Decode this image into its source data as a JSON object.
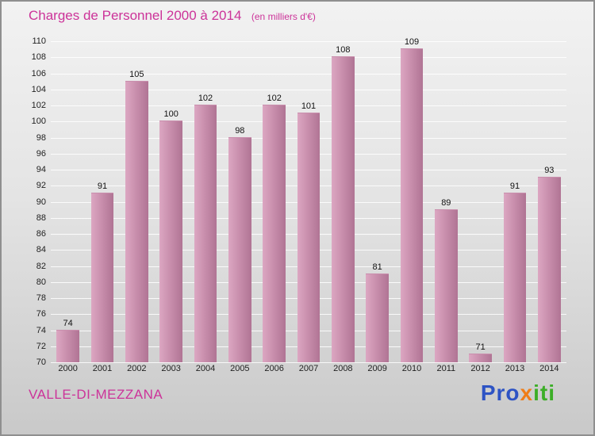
{
  "title": "Charges de Personnel 2000 à 2014",
  "subtitle": "(en milliers d'€)",
  "footer": {
    "location": "VALLE-DI-MEZZANA",
    "logo": {
      "pro": "Pro",
      "x": "x",
      "iti": "iti"
    }
  },
  "colors": {
    "accent": "#cc3399",
    "bar_light": "#dca7c2",
    "bar_dark": "#b07494",
    "logo_blue": "#2d53c4",
    "logo_orange": "#ef7d17",
    "logo_green": "#3cae27",
    "background_top": "#f2f2f2",
    "background_bottom": "#c9c9c9"
  },
  "chart_data": {
    "type": "bar",
    "title": "Charges de Personnel 2000 à 2014",
    "subtitle": "(en milliers d'€)",
    "categories": [
      "2000",
      "2001",
      "2002",
      "2003",
      "2004",
      "2005",
      "2006",
      "2007",
      "2008",
      "2009",
      "2010",
      "2011",
      "2012",
      "2013",
      "2014"
    ],
    "values": [
      74,
      91,
      105,
      100,
      102,
      98,
      102,
      101,
      108,
      81,
      109,
      89,
      71,
      91,
      93
    ],
    "xlabel": "",
    "ylabel": "",
    "ylim": [
      70,
      110
    ],
    "ytick_step": 2,
    "grid": true,
    "legend": false
  }
}
